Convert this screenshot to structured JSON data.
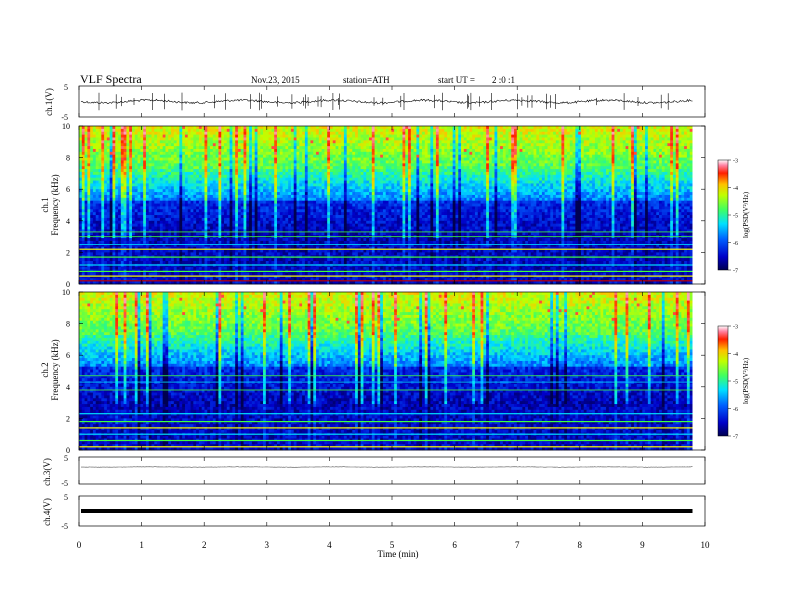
{
  "header": {
    "title": "VLF Spectra",
    "date": "Nov.23, 2015",
    "station": "station=ATH",
    "start_label": "start UT =",
    "start_time": "2 :0 :1"
  },
  "chart_data": [
    {
      "type": "line",
      "panel": "ch1-waveform",
      "ylabel": "ch.1(V)",
      "ylim": [
        -5,
        5
      ],
      "yticks": [
        "5",
        "-5"
      ],
      "baseline": 0.0,
      "color": "#000000"
    },
    {
      "type": "heatmap",
      "panel": "ch1-spectrogram",
      "ylabel_channel": "ch.1",
      "ylabel": "Frequency (kHz)",
      "ylim": [
        0,
        10
      ],
      "yticks": [
        "0",
        "2",
        "4",
        "6",
        "8",
        "10"
      ],
      "colorbar": {
        "label": "log(PSD(V²/Hz)",
        "range": [
          -7,
          -3
        ],
        "ticks": [
          "-3",
          "-4",
          "-5",
          "-6",
          "-7"
        ]
      }
    },
    {
      "type": "heatmap",
      "panel": "ch2-spectrogram",
      "ylabel_channel": "ch.2",
      "ylabel": "Frequency (kHz)",
      "ylim": [
        0,
        10
      ],
      "yticks": [
        "0",
        "2",
        "4",
        "6",
        "8",
        "10"
      ],
      "colorbar": {
        "label": "log(PSD(V²/Hz)",
        "range": [
          -7,
          -3
        ],
        "ticks": [
          "-3",
          "-4",
          "-5",
          "-6",
          "-7"
        ]
      }
    },
    {
      "type": "line",
      "panel": "ch3-waveform",
      "ylabel": "ch.3(V)",
      "ylim": [
        -5,
        5
      ],
      "yticks": [
        "5",
        "-5"
      ],
      "baseline": 0.0,
      "color": "#555555"
    },
    {
      "type": "line",
      "panel": "ch4-waveform",
      "ylabel": "ch.4(V)",
      "ylim": [
        -5,
        5
      ],
      "yticks": [
        "5",
        "-5"
      ],
      "baseline": 0.0,
      "color": "#000000"
    }
  ],
  "xaxis": {
    "label": "Time (min)",
    "range": [
      0,
      10
    ],
    "data_end": 9.8,
    "ticks": [
      "0",
      "1",
      "2",
      "3",
      "4",
      "5",
      "6",
      "7",
      "8",
      "9",
      "10"
    ]
  },
  "colors": {
    "cmap_low": "#000050",
    "cmap_mid_blue": "#0040ff",
    "cmap_cyan": "#00e0ff",
    "cmap_green": "#40ff40",
    "cmap_yellow": "#ffff00",
    "cmap_high": "#ff0000"
  }
}
